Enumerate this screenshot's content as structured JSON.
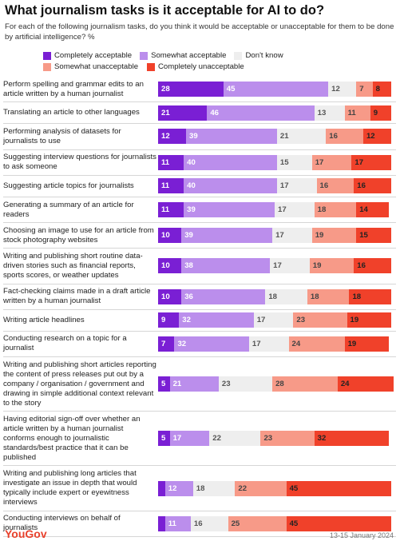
{
  "chart_data": {
    "type": "stacked-bar",
    "title": "What journalism tasks is it acceptable for AI to do?",
    "subtitle": "For each of the following journalism tasks, do you think it would be acceptable or unacceptable for them to be done by artificial intelligence? %",
    "categories": [
      "Perform spelling and grammar edits to an article written by a human journalist",
      "Translating an article to other languages",
      "Performing analysis of datasets for journalists to use",
      "Suggesting interview questions for journalists to ask someone",
      "Suggesting article topics for journalists",
      "Generating a summary of an article for readers",
      "Choosing an image to use for an article from stock photography websites",
      "Writing and publishing short routine data-driven stories such as financial reports, sports scores, or weather updates",
      "Fact-checking claims made in a draft article written by a human journalist",
      "Writing article headlines",
      "Conducting research on a topic for a journalist",
      "Writing and publishing short articles reporting the content of press releases put out by a company / organisation / government and drawing in simple additional context relevant to the story",
      "Having editorial sign-off over whether an article written by a human journalist conforms enough to journalistic standards/best practice that it can be published",
      "Writing and publishing long articles that investigate an issue in depth that would typically include expert or eyewitness interviews",
      "Conducting interviews on behalf of journalists"
    ],
    "series": [
      {
        "name": "Completely acceptable",
        "color": "#7a1fd4",
        "label_color": "#ffffff",
        "values": [
          28,
          21,
          12,
          11,
          11,
          11,
          10,
          10,
          10,
          9,
          7,
          5,
          5,
          3,
          3
        ]
      },
      {
        "name": "Somewhat acceptable",
        "color": "#bb8eec",
        "label_color": "#ffffff",
        "values": [
          45,
          46,
          39,
          40,
          40,
          39,
          39,
          38,
          36,
          32,
          32,
          21,
          17,
          12,
          11
        ]
      },
      {
        "name": "Don't know",
        "color": "#eeeeee",
        "label_color": "#555555",
        "values": [
          12,
          13,
          21,
          15,
          17,
          17,
          17,
          17,
          18,
          17,
          17,
          23,
          22,
          18,
          16
        ]
      },
      {
        "name": "Somewhat unacceptable",
        "color": "#f79a88",
        "label_color": "#444444",
        "values": [
          7,
          11,
          16,
          17,
          16,
          18,
          19,
          19,
          18,
          23,
          24,
          28,
          23,
          22,
          25
        ]
      },
      {
        "name": "Completely unacceptable",
        "color": "#f0412a",
        "label_color": "#222222",
        "values": [
          8,
          9,
          12,
          17,
          16,
          14,
          15,
          16,
          18,
          19,
          19,
          24,
          32,
          45,
          45
        ]
      }
    ],
    "xlim": [
      0,
      100
    ],
    "source": "YouGov",
    "date": "13-15 January 2024"
  }
}
